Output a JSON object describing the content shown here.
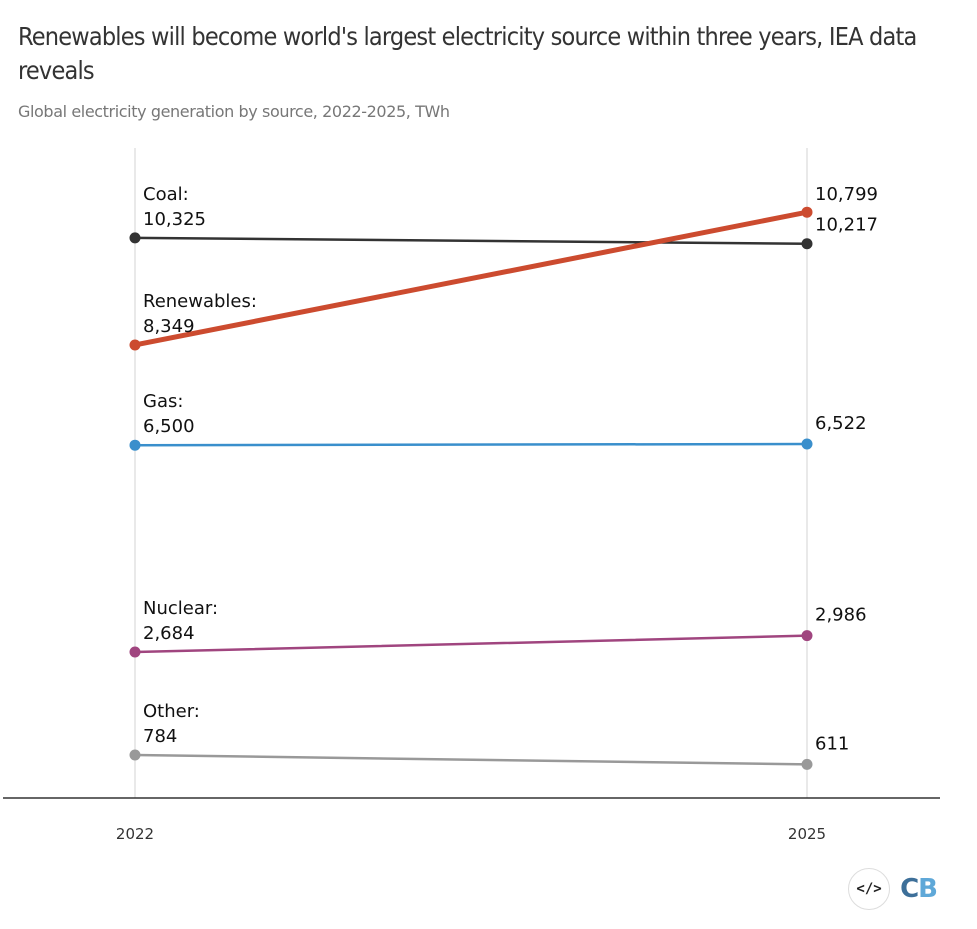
{
  "header": {
    "title": "Renewables will become world's largest electricity source within three years, IEA data reveals",
    "subtitle": "Global electricity generation by source, 2022-2025, TWh"
  },
  "footer": {
    "embed_icon": "code-embed-icon",
    "embed_glyph": "</>",
    "logo_c": "C",
    "logo_b": "B"
  },
  "chart_data": {
    "type": "line",
    "title": "Renewables will become world's largest electricity source within three years, IEA data reveals",
    "subtitle": "Global electricity generation by source, 2022-2025, TWh",
    "xlabel": "",
    "ylabel": "",
    "x": [
      "2022",
      "2025"
    ],
    "ylim": [
      0,
      11000
    ],
    "grid": "vertical lines at each year",
    "legend": "none (inline labels)",
    "series": [
      {
        "name": "Coal",
        "color": "#333333",
        "values": [
          10325,
          10217
        ],
        "labels": [
          "Coal:",
          "10,325",
          "10,217"
        ]
      },
      {
        "name": "Renewables",
        "color": "#cc4b2f",
        "values": [
          8349,
          10799
        ],
        "labels": [
          "Renewables:",
          "8,349",
          "10,799"
        ]
      },
      {
        "name": "Gas",
        "color": "#3a8fcc",
        "values": [
          6500,
          6522
        ],
        "labels": [
          "Gas:",
          "6,500",
          "6,522"
        ]
      },
      {
        "name": "Nuclear",
        "color": "#a0457f",
        "values": [
          2684,
          2986
        ],
        "labels": [
          "Nuclear:",
          "2,684",
          "2,986"
        ]
      },
      {
        "name": "Other",
        "color": "#999999",
        "values": [
          784,
          611
        ],
        "labels": [
          "Other:",
          "784",
          "611"
        ]
      }
    ]
  }
}
